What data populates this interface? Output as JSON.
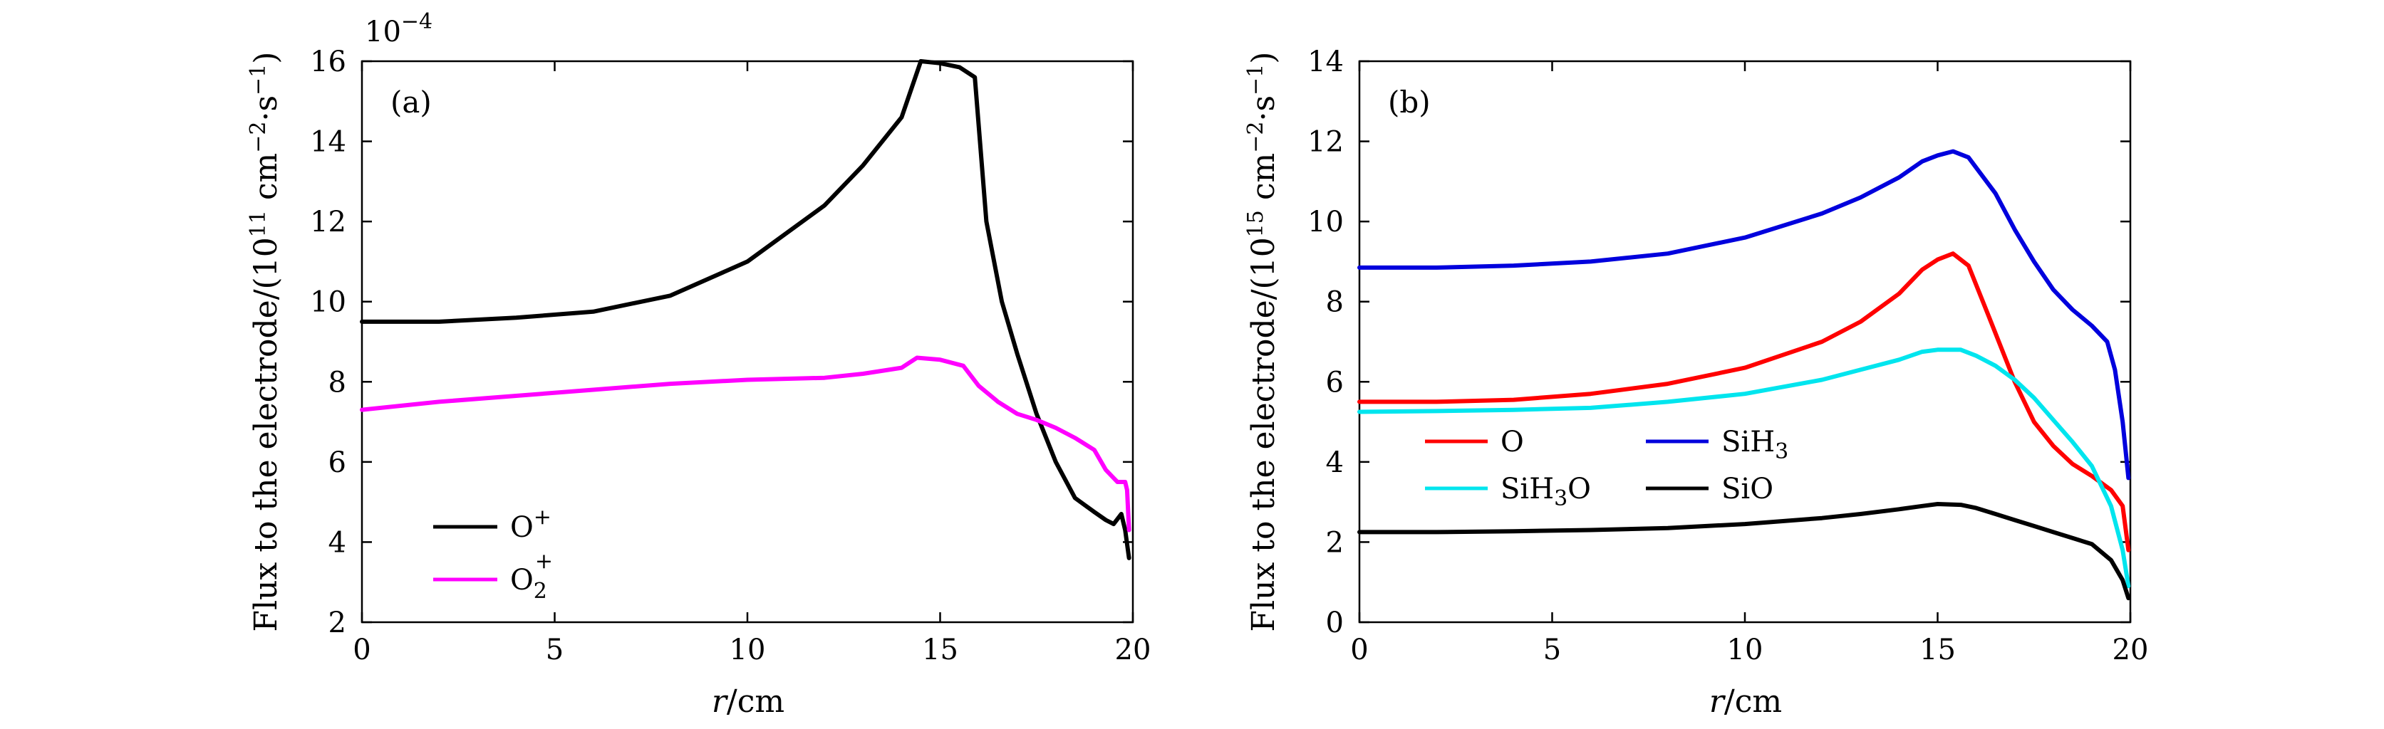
{
  "chart_data": [
    {
      "panel_label": "(a)",
      "type": "line",
      "xlabel": "r/cm",
      "xlabel_italic": "r",
      "xlabel_unit": "/cm",
      "ylabel": "Flux to the electrode/(10^11 cm^-2·s^-1)",
      "ylabel_parts": {
        "text1": "Flux to the electrode/(10",
        "exp": "11",
        "text2": " cm",
        "exp2": "−2",
        "text3": "·s",
        "exp3": "−1",
        "text4": ")"
      },
      "multiplier": "10",
      "multiplier_exp": "−4",
      "xlim": [
        0,
        20
      ],
      "ylim": [
        2,
        16
      ],
      "xticks": [
        "0",
        "5",
        "10",
        "15",
        "20"
      ],
      "yticks": [
        "2",
        "4",
        "6",
        "8",
        "10",
        "12",
        "14",
        "16"
      ],
      "legend_position": "bottom-left",
      "series": [
        {
          "name": "O+",
          "label_base": "O",
          "label_sup": "+",
          "label_sub": "",
          "color": "#000000",
          "x": [
            0,
            2,
            4,
            6,
            8,
            10,
            12,
            13,
            14,
            14.5,
            15,
            15.5,
            15.9,
            16.2,
            16.6,
            17,
            17.5,
            18,
            18.5,
            19,
            19.3,
            19.5,
            19.7,
            19.8,
            19.9
          ],
          "y": [
            9.5,
            9.5,
            9.6,
            9.75,
            10.15,
            11.0,
            12.4,
            13.4,
            14.6,
            16.0,
            15.95,
            15.85,
            15.6,
            12.0,
            10.0,
            8.7,
            7.2,
            6.0,
            5.1,
            4.75,
            4.55,
            4.45,
            4.7,
            4.3,
            3.6
          ]
        },
        {
          "name": "O2+",
          "label_base": "O",
          "label_sup": "+",
          "label_sub": "2",
          "color": "#ff00ff",
          "x": [
            0,
            2,
            4,
            6,
            8,
            10,
            12,
            13,
            14,
            14.4,
            15,
            15.6,
            16,
            16.5,
            17,
            17.5,
            18,
            18.5,
            19,
            19.3,
            19.5,
            19.6,
            19.8,
            19.85,
            19.9
          ],
          "y": [
            7.3,
            7.5,
            7.65,
            7.8,
            7.95,
            8.05,
            8.1,
            8.2,
            8.35,
            8.6,
            8.55,
            8.4,
            7.9,
            7.5,
            7.2,
            7.05,
            6.85,
            6.6,
            6.3,
            5.8,
            5.6,
            5.5,
            5.5,
            5.3,
            4.3
          ]
        }
      ]
    },
    {
      "panel_label": "(b)",
      "type": "line",
      "xlabel": "r/cm",
      "xlabel_italic": "r",
      "xlabel_unit": "/cm",
      "ylabel": "Flux to the electrode/(10^15 cm^-2·s^-1)",
      "ylabel_parts": {
        "text1": "Flux to the electrode/(10",
        "exp": "15",
        "text2": " cm",
        "exp2": "−2",
        "text3": "·s",
        "exp3": "−1",
        "text4": ")"
      },
      "xlim": [
        0,
        20
      ],
      "ylim": [
        0,
        14
      ],
      "xticks": [
        "0",
        "5",
        "10",
        "15",
        "20"
      ],
      "yticks": [
        "0",
        "2",
        "4",
        "6",
        "8",
        "10",
        "12",
        "14"
      ],
      "legend_position": "middle-left",
      "series": [
        {
          "name": "O",
          "label_base": "O",
          "label_sup": "",
          "label_sub": "",
          "label_tail": "",
          "color": "#ff0000",
          "x": [
            0,
            2,
            4,
            6,
            8,
            10,
            12,
            13,
            14,
            14.6,
            15,
            15.4,
            15.8,
            16.3,
            17,
            17.5,
            18,
            18.5,
            19,
            19.5,
            19.8,
            19.95
          ],
          "y": [
            5.5,
            5.5,
            5.55,
            5.7,
            5.95,
            6.35,
            7.0,
            7.5,
            8.2,
            8.8,
            9.05,
            9.2,
            8.9,
            7.7,
            6.0,
            5.0,
            4.4,
            3.95,
            3.65,
            3.3,
            2.9,
            1.8
          ]
        },
        {
          "name": "SiH3",
          "label_base": "SiH",
          "label_sup": "",
          "label_sub": "3",
          "label_tail": "",
          "color": "#0000dd",
          "x": [
            0,
            2,
            4,
            6,
            8,
            10,
            12,
            13,
            14,
            14.6,
            15,
            15.4,
            15.8,
            16.5,
            17,
            17.5,
            18,
            18.5,
            19,
            19.4,
            19.6,
            19.8,
            19.95
          ],
          "y": [
            8.85,
            8.85,
            8.9,
            9.0,
            9.2,
            9.6,
            10.2,
            10.6,
            11.1,
            11.5,
            11.65,
            11.75,
            11.6,
            10.7,
            9.8,
            9.0,
            8.3,
            7.8,
            7.4,
            7.0,
            6.3,
            5.0,
            3.6
          ]
        },
        {
          "name": "SiH3O",
          "label_base": "SiH",
          "label_sup": "",
          "label_sub": "3",
          "label_tail": "O",
          "color": "#00e5ee",
          "x": [
            0,
            2,
            4,
            6,
            8,
            10,
            12,
            13,
            14,
            14.6,
            15,
            15.6,
            16,
            16.5,
            17,
            17.5,
            18,
            18.5,
            19,
            19.5,
            19.8,
            19.95
          ],
          "y": [
            5.25,
            5.27,
            5.3,
            5.35,
            5.5,
            5.7,
            6.05,
            6.3,
            6.55,
            6.75,
            6.8,
            6.8,
            6.65,
            6.4,
            6.05,
            5.6,
            5.05,
            4.5,
            3.9,
            2.9,
            1.8,
            0.9
          ]
        },
        {
          "name": "SiO",
          "label_base": "SiO",
          "label_sup": "",
          "label_sub": "",
          "label_tail": "",
          "color": "#000000",
          "x": [
            0,
            2,
            4,
            6,
            8,
            10,
            12,
            13,
            14,
            14.6,
            15,
            15.6,
            16,
            16.5,
            17,
            17.5,
            18,
            18.5,
            19,
            19.5,
            19.8,
            19.95
          ],
          "y": [
            2.25,
            2.25,
            2.27,
            2.3,
            2.35,
            2.45,
            2.6,
            2.7,
            2.82,
            2.9,
            2.95,
            2.93,
            2.85,
            2.7,
            2.55,
            2.4,
            2.25,
            2.1,
            1.95,
            1.55,
            1.05,
            0.6
          ]
        }
      ]
    }
  ]
}
